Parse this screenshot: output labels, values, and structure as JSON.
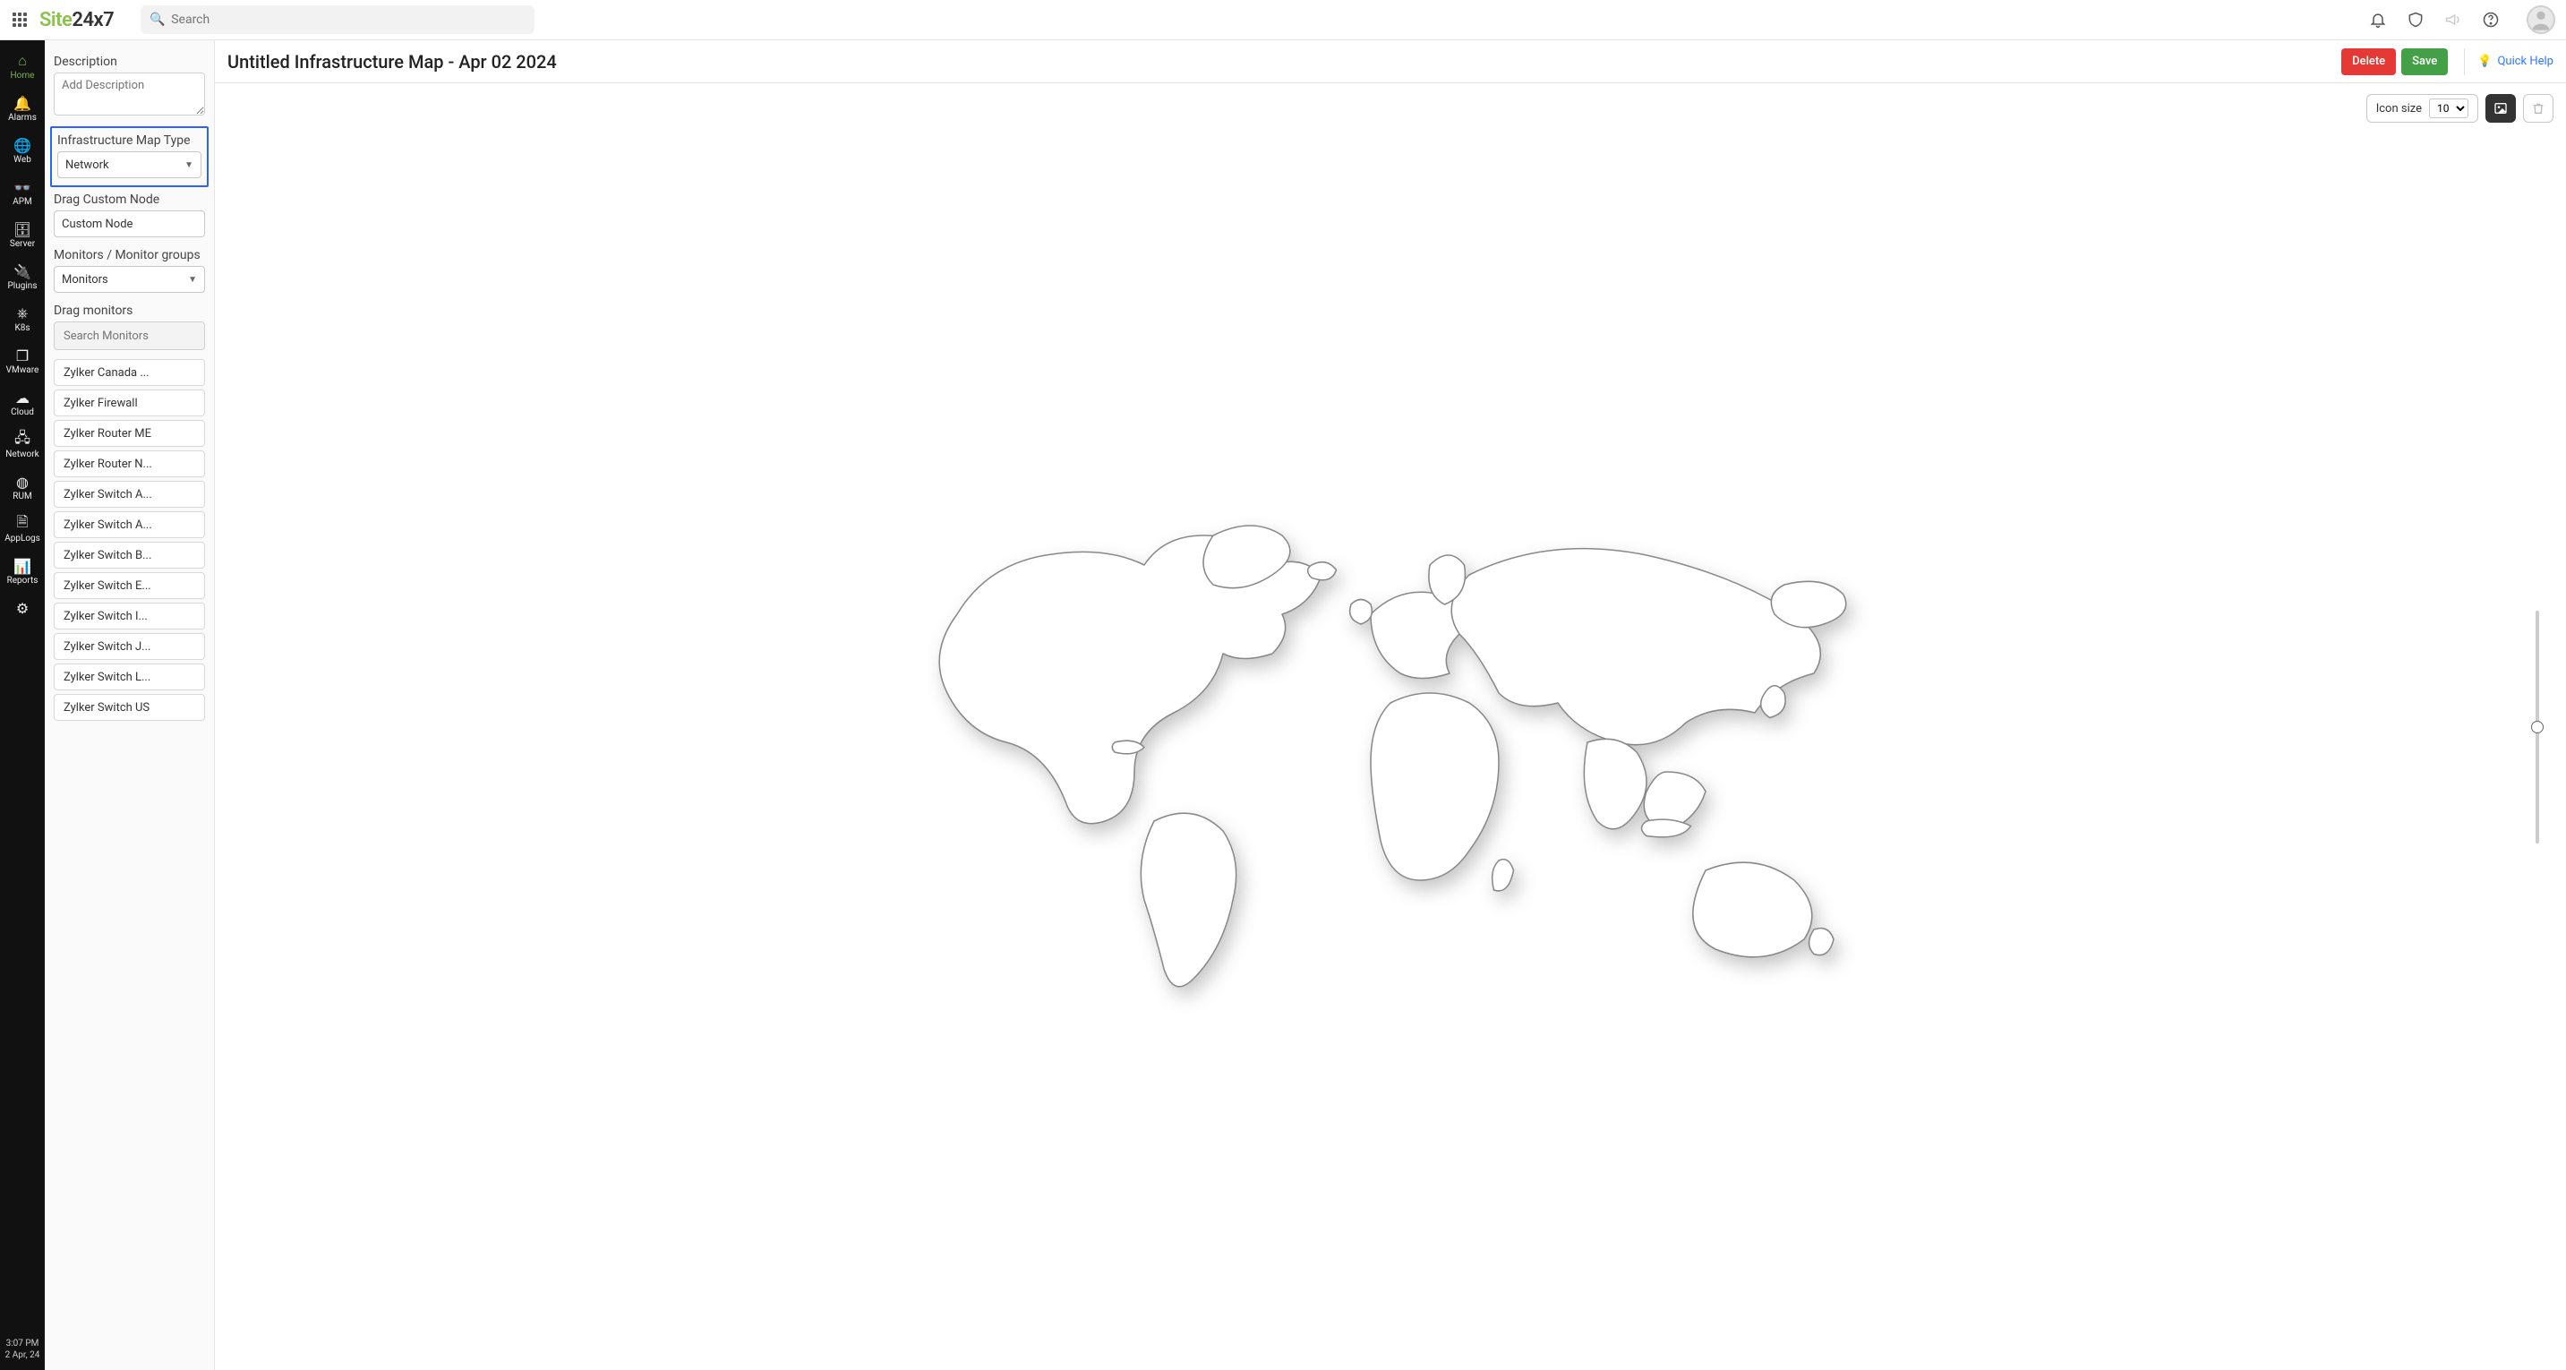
{
  "brand": {
    "part1": "Site",
    "part2": "24x7"
  },
  "search": {
    "placeholder": "Search"
  },
  "nav": {
    "items": [
      {
        "label": "Home",
        "glyph": "⌂",
        "active": true
      },
      {
        "label": "Alarms",
        "glyph": "🔔",
        "active": false
      },
      {
        "label": "Web",
        "glyph": "🌐",
        "active": false
      },
      {
        "label": "APM",
        "glyph": "👓",
        "active": false
      },
      {
        "label": "Server",
        "glyph": "🗄",
        "active": false
      },
      {
        "label": "Plugins",
        "glyph": "🔌",
        "active": false
      },
      {
        "label": "K8s",
        "glyph": "⎈",
        "active": false
      },
      {
        "label": "VMware",
        "glyph": "❐",
        "active": false
      },
      {
        "label": "Cloud",
        "glyph": "☁",
        "active": false
      },
      {
        "label": "Network",
        "glyph": "🖧",
        "active": false
      },
      {
        "label": "RUM",
        "glyph": "◍",
        "active": false
      },
      {
        "label": "AppLogs",
        "glyph": "🗎",
        "active": false
      },
      {
        "label": "Reports",
        "glyph": "📊",
        "active": false
      },
      {
        "label": "",
        "glyph": "⚙",
        "active": false
      }
    ],
    "time": "3:07 PM",
    "date": "2 Apr, 24"
  },
  "config": {
    "description_label": "Description",
    "description_placeholder": "Add Description",
    "map_type_label": "Infrastructure Map Type",
    "map_type_value": "Network",
    "drag_node_label": "Drag Custom Node",
    "custom_node_value": "Custom Node",
    "monitors_group_label": "Monitors / Monitor groups",
    "monitors_group_value": "Monitors",
    "drag_monitors_label": "Drag monitors",
    "search_monitors_placeholder": "Search Monitors",
    "monitors": [
      "Zylker Canada ...",
      "Zylker Firewall",
      "Zylker Router ME",
      "Zylker Router N...",
      "Zylker Switch A...",
      "Zylker Switch A...",
      "Zylker Switch B...",
      "Zylker Switch E...",
      "Zylker Switch I...",
      "Zylker Switch J...",
      "Zylker Switch L...",
      "Zylker Switch US"
    ]
  },
  "main": {
    "title": "Untitled Infrastructure Map - Apr 02 2024",
    "delete_label": "Delete",
    "save_label": "Save",
    "quick_help_label": "Quick Help",
    "icon_size_label": "Icon size",
    "icon_size_value": "10",
    "zoom_knob_percent": 50
  },
  "colors": {
    "brand_green": "#8bc34a",
    "danger": "#e53935",
    "success": "#43a047",
    "highlight_border": "#2962ff",
    "link_blue": "#2979ff"
  }
}
